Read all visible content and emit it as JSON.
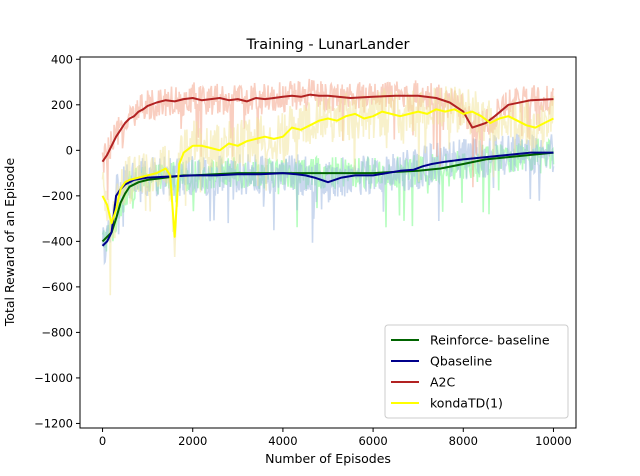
{
  "chart_data": {
    "type": "line",
    "title": "Training - LunarLander",
    "xlabel": "Number of Episodes",
    "ylabel": "Total Reward of an Episode",
    "xlim": [
      -500,
      10500
    ],
    "ylim": [
      -1220,
      410
    ],
    "xticks": [
      0,
      2000,
      4000,
      6000,
      8000,
      10000
    ],
    "yticks": [
      400,
      200,
      0,
      -200,
      -400,
      -600,
      -800,
      -1000,
      -1200
    ],
    "grid": false,
    "legend_position": "lower-right",
    "series": [
      {
        "name": "Reinforce- baseline",
        "color": "#006400",
        "raw_color": "#7cfc8c",
        "x": [
          0,
          100,
          200,
          300,
          400,
          500,
          600,
          800,
          1000,
          1200,
          1400,
          1600,
          1800,
          2000,
          2500,
          3000,
          3500,
          4000,
          4500,
          5000,
          5500,
          6000,
          6500,
          7000,
          7500,
          8000,
          8500,
          9000,
          9500,
          10000
        ],
        "y": [
          -400,
          -380,
          -360,
          -300,
          -230,
          -190,
          -160,
          -140,
          -130,
          -125,
          -120,
          -115,
          -110,
          -110,
          -105,
          -100,
          -100,
          -100,
          -100,
          -100,
          -100,
          -100,
          -95,
          -90,
          -80,
          -60,
          -40,
          -30,
          -20,
          -10
        ]
      },
      {
        "name": "Qbaseline",
        "color": "#00008b",
        "raw_color": "#9fb8e0",
        "x": [
          0,
          100,
          200,
          300,
          400,
          500,
          700,
          1000,
          1500,
          2000,
          2500,
          3000,
          3500,
          4000,
          4300,
          4500,
          4700,
          5000,
          5300,
          5600,
          6000,
          6300,
          6600,
          6900,
          7100,
          7300,
          7600,
          8000,
          8500,
          9000,
          9500,
          10000
        ],
        "y": [
          -420,
          -400,
          -360,
          -200,
          -170,
          -150,
          -130,
          -120,
          -115,
          -110,
          -110,
          -105,
          -105,
          -100,
          -105,
          -110,
          -120,
          -140,
          -120,
          -110,
          -110,
          -100,
          -90,
          -85,
          -70,
          -60,
          -50,
          -40,
          -30,
          -20,
          -10,
          -10
        ]
      },
      {
        "name": "A2C",
        "color": "#b22222",
        "raw_color": "#f4a58c",
        "x": [
          0,
          100,
          200,
          300,
          400,
          500,
          600,
          700,
          800,
          900,
          1000,
          1200,
          1400,
          1600,
          1800,
          2000,
          2200,
          2400,
          2600,
          2800,
          3000,
          3200,
          3400,
          3600,
          3800,
          4000,
          4200,
          4400,
          4600,
          4800,
          5000,
          5500,
          6000,
          6500,
          7000,
          7400,
          7700,
          8000,
          8200,
          8500,
          8700,
          9000,
          9500,
          10000
        ],
        "y": [
          -50,
          -20,
          20,
          60,
          90,
          120,
          140,
          150,
          170,
          180,
          195,
          210,
          220,
          215,
          225,
          230,
          220,
          225,
          230,
          220,
          225,
          215,
          230,
          225,
          230,
          235,
          240,
          235,
          245,
          240,
          240,
          230,
          235,
          240,
          240,
          230,
          210,
          170,
          100,
          120,
          150,
          200,
          220,
          225
        ]
      },
      {
        "name": "kondaTD(1)",
        "color": "#ffff00",
        "raw_color": "#f2e5a0",
        "x": [
          0,
          100,
          200,
          300,
          400,
          500,
          600,
          800,
          1000,
          1200,
          1400,
          1500,
          1600,
          1700,
          1800,
          2000,
          2200,
          2400,
          2600,
          2800,
          3000,
          3200,
          3400,
          3600,
          3800,
          4000,
          4200,
          4400,
          4600,
          4800,
          5000,
          5200,
          5400,
          5600,
          5800,
          6000,
          6200,
          6400,
          6600,
          6800,
          7000,
          7200,
          7400,
          7600,
          7800,
          8000,
          8200,
          8400,
          8600,
          8800,
          9000,
          9200,
          9400,
          9600,
          9800,
          10000
        ],
        "y": [
          -200,
          -240,
          -320,
          -260,
          -170,
          -140,
          -130,
          -120,
          -110,
          -100,
          -80,
          -110,
          -380,
          -60,
          -10,
          20,
          20,
          10,
          0,
          30,
          20,
          40,
          50,
          60,
          50,
          60,
          100,
          90,
          110,
          130,
          140,
          130,
          150,
          160,
          140,
          150,
          170,
          160,
          150,
          160,
          170,
          160,
          180,
          170,
          180,
          160,
          170,
          150,
          120,
          140,
          150,
          130,
          110,
          100,
          120,
          140
        ]
      }
    ]
  }
}
